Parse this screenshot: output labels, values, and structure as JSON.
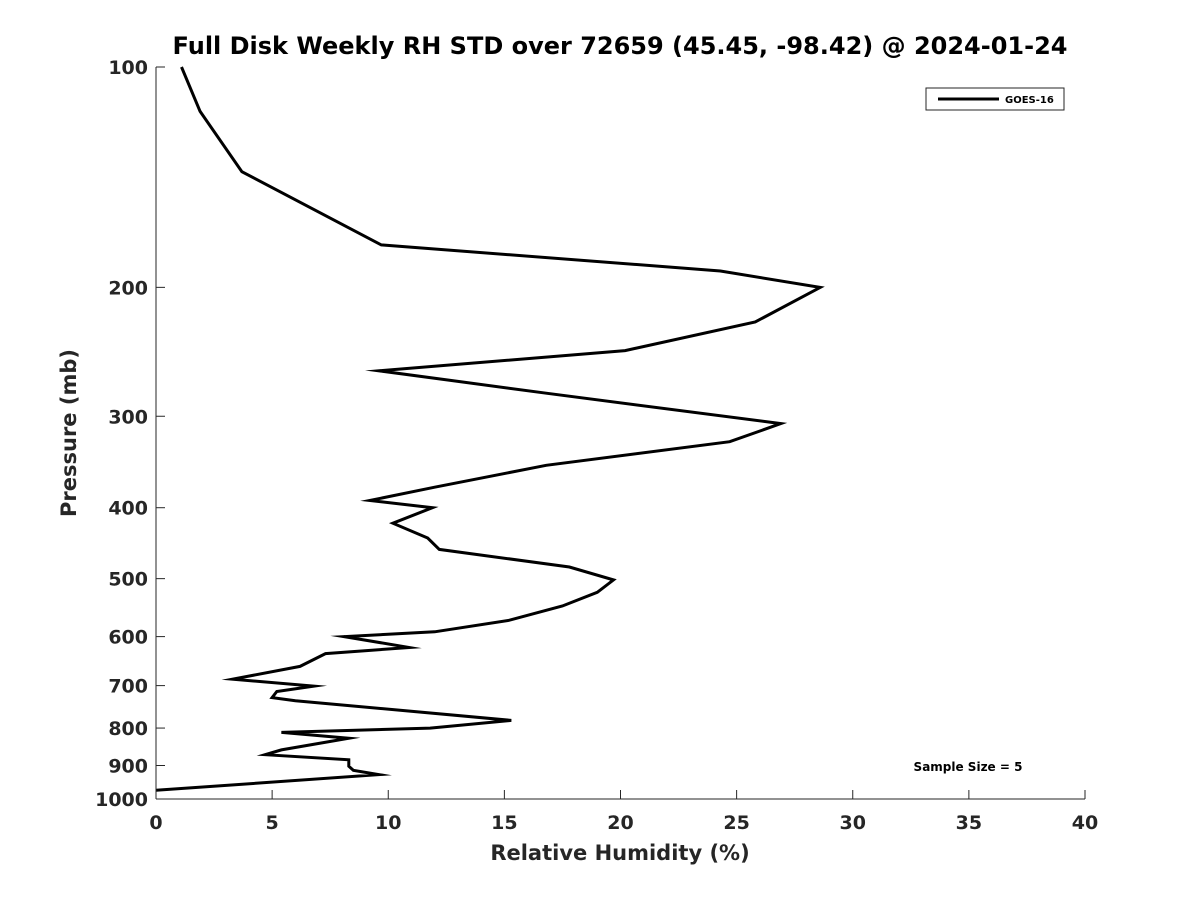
{
  "chart_data": {
    "type": "line",
    "title": "Full Disk Weekly RH STD over 72659 (45.45, -98.42) @ 2024-01-24",
    "xlabel": "Relative Humidity (%)",
    "ylabel": "Pressure (mb)",
    "xlim": [
      0,
      40
    ],
    "ylim": [
      100,
      1000
    ],
    "yscale": "log",
    "yaxis_direction": "reversed",
    "xticks": [
      0,
      5,
      10,
      15,
      20,
      25,
      30,
      35,
      40
    ],
    "xtick_labels": [
      "0",
      "5",
      "10",
      "15",
      "20",
      "25",
      "30",
      "35",
      "40"
    ],
    "yticks": [
      100,
      200,
      300,
      400,
      500,
      600,
      700,
      800,
      900,
      1000
    ],
    "ytick_labels": [
      "100",
      "200",
      "300",
      "400",
      "500",
      "600",
      "700",
      "800",
      "900",
      "1000"
    ],
    "grid": false,
    "legend_position": "top-right",
    "annotation": "Sample Size = 5",
    "series": [
      {
        "name": "GOES-16",
        "color": "#000000",
        "x": [
          1.1,
          1.9,
          3.7,
          9.7,
          24.3,
          28.6,
          25.8,
          20.2,
          9.6,
          16.8,
          26.9,
          24.7,
          16.8,
          12.0,
          9.2,
          11.9,
          10.2,
          11.7,
          12.2,
          17.8,
          19.7,
          19.0,
          17.5,
          15.2,
          12.0,
          8.1,
          10.9,
          7.3,
          6.2,
          3.3,
          6.8,
          5.2,
          5.0,
          6.0,
          15.3,
          11.8,
          5.4,
          8.3,
          5.4,
          4.7,
          8.3,
          8.3,
          8.5,
          9.6,
          0.0
        ],
        "y": [
          100,
          115,
          139,
          175,
          190,
          200,
          223,
          244,
          260,
          279,
          307,
          325,
          350,
          375,
          391,
          400,
          420,
          440,
          456,
          482,
          502,
          522,
          545,
          570,
          591,
          600,
          621,
          633,
          659,
          686,
          701,
          713,
          727,
          734,
          781,
          800,
          811,
          826,
          857,
          870,
          884,
          902,
          914,
          926,
          973
        ]
      }
    ]
  }
}
